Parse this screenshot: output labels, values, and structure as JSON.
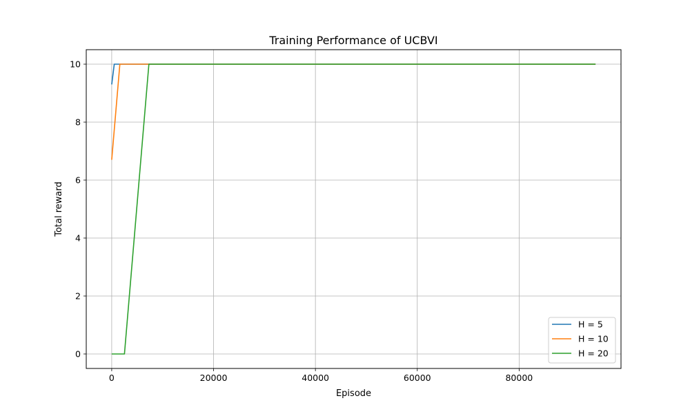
{
  "chart_data": {
    "type": "line",
    "title": "Training Performance of UCBVI",
    "xlabel": "Episode",
    "ylabel": "Total reward",
    "xlim": [
      -5000,
      100000
    ],
    "ylim": [
      -0.5,
      10.5
    ],
    "xticks": [
      0,
      20000,
      40000,
      60000,
      80000
    ],
    "yticks": [
      0,
      2,
      4,
      6,
      8,
      10
    ],
    "grid": true,
    "legend_position": "lower right",
    "series": [
      {
        "name": "H = 5",
        "color": "#1f77b4",
        "points": [
          [
            0,
            9.3
          ],
          [
            500,
            10
          ],
          [
            95000,
            10
          ]
        ]
      },
      {
        "name": "H = 10",
        "color": "#ff7f0e",
        "points": [
          [
            0,
            6.7
          ],
          [
            1600,
            10
          ],
          [
            95000,
            10
          ]
        ]
      },
      {
        "name": "H = 20",
        "color": "#2ca02c",
        "points": [
          [
            0,
            0
          ],
          [
            2500,
            0
          ],
          [
            7300,
            10
          ],
          [
            95000,
            10
          ]
        ]
      }
    ]
  }
}
